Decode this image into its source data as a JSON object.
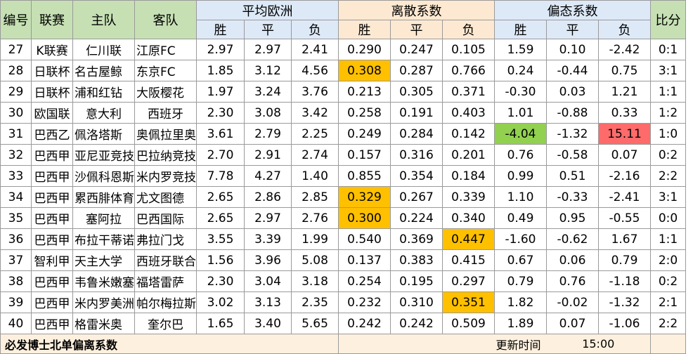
{
  "headers": {
    "id": "编号",
    "league": "联赛",
    "home": "主队",
    "away": "客队",
    "avg_euro": "平均欧洲",
    "dispersion": "离散系数",
    "skew": "偏态系数",
    "score": "比分",
    "win": "胜",
    "draw": "平",
    "loss": "负"
  },
  "rows": [
    {
      "id": "27",
      "league": "K联赛",
      "home": "仁川联",
      "away": "江原FC",
      "e_w": "2.97",
      "e_d": "2.97",
      "e_l": "2.41",
      "d_w": "0.290",
      "d_d": "0.247",
      "d_l": "0.105",
      "s_w": "1.59",
      "s_d": "0.10",
      "s_l": "-2.42",
      "score": "0:1"
    },
    {
      "id": "28",
      "league": "日联杯",
      "home": "名古屋鲸",
      "away": "东京FC",
      "e_w": "1.85",
      "e_d": "3.12",
      "e_l": "4.56",
      "d_w": "0.308",
      "d_d": "0.287",
      "d_l": "0.766",
      "s_w": "0.24",
      "s_d": "-0.44",
      "s_l": "0.75",
      "score": "3:1"
    },
    {
      "id": "29",
      "league": "日联杯",
      "home": "浦和红钻",
      "away": "大阪樱花",
      "e_w": "1.97",
      "e_d": "3.24",
      "e_l": "3.76",
      "d_w": "0.213",
      "d_d": "0.305",
      "d_l": "0.371",
      "s_w": "-0.30",
      "s_d": "0.03",
      "s_l": "1.21",
      "score": "1:1"
    },
    {
      "id": "30",
      "league": "欧国联",
      "home": "意大利",
      "away": "西班牙",
      "e_w": "2.30",
      "e_d": "3.08",
      "e_l": "3.42",
      "d_w": "0.258",
      "d_d": "0.191",
      "d_l": "0.403",
      "s_w": "1.01",
      "s_d": "-0.88",
      "s_l": "0.33",
      "score": "1:2"
    },
    {
      "id": "31",
      "league": "巴西乙",
      "home": "佩洛塔斯",
      "away": "奥佩拉里奥",
      "e_w": "3.61",
      "e_d": "2.79",
      "e_l": "2.25",
      "d_w": "0.249",
      "d_d": "0.284",
      "d_l": "0.142",
      "s_w": "-4.04",
      "s_d": "-1.32",
      "s_l": "15.11",
      "score": "1:0"
    },
    {
      "id": "32",
      "league": "巴西甲",
      "home": "亚尼亚竞技",
      "away": "巴拉纳竞技",
      "e_w": "2.70",
      "e_d": "2.91",
      "e_l": "2.74",
      "d_w": "0.157",
      "d_d": "0.316",
      "d_l": "0.201",
      "s_w": "0.76",
      "s_d": "-0.58",
      "s_l": "0.07",
      "score": "0:2"
    },
    {
      "id": "33",
      "league": "巴西甲",
      "home": "沙佩科恩斯",
      "away": "米内罗竞技",
      "e_w": "7.78",
      "e_d": "4.27",
      "e_l": "1.40",
      "d_w": "0.855",
      "d_d": "0.354",
      "d_l": "0.184",
      "s_w": "0.99",
      "s_d": "0.51",
      "s_l": "-2.16",
      "score": "2:2"
    },
    {
      "id": "34",
      "league": "巴西甲",
      "home": "累西腓体育",
      "away": "尤文图德",
      "e_w": "2.65",
      "e_d": "2.86",
      "e_l": "2.85",
      "d_w": "0.329",
      "d_d": "0.267",
      "d_l": "0.339",
      "s_w": "1.10",
      "s_d": "-0.33",
      "s_l": "-2.41",
      "score": "3:1"
    },
    {
      "id": "35",
      "league": "巴西甲",
      "home": "塞阿拉",
      "away": "巴西国际",
      "e_w": "2.65",
      "e_d": "2.97",
      "e_l": "2.76",
      "d_w": "0.300",
      "d_d": "0.224",
      "d_l": "0.340",
      "s_w": "0.49",
      "s_d": "0.95",
      "s_l": "-0.55",
      "score": "0:0"
    },
    {
      "id": "36",
      "league": "巴西甲",
      "home": "布拉干蒂诺",
      "away": "弗拉门戈",
      "e_w": "3.55",
      "e_d": "3.39",
      "e_l": "1.99",
      "d_w": "0.540",
      "d_d": "0.369",
      "d_l": "0.447",
      "s_w": "-1.60",
      "s_d": "-0.62",
      "s_l": "1.67",
      "score": "1:1"
    },
    {
      "id": "37",
      "league": "智利甲",
      "home": "天主大学",
      "away": "西班牙联合",
      "e_w": "1.56",
      "e_d": "3.96",
      "e_l": "5.08",
      "d_w": "0.137",
      "d_d": "0.383",
      "d_l": "0.415",
      "s_w": "0.67",
      "s_d": "0.06",
      "s_l": "0.79",
      "score": "2:0"
    },
    {
      "id": "38",
      "league": "巴西甲",
      "home": "韦鲁米嫩塞",
      "away": "福塔雷萨",
      "e_w": "2.30",
      "e_d": "3.04",
      "e_l": "3.18",
      "d_w": "0.254",
      "d_d": "0.195",
      "d_l": "0.297",
      "s_w": "0.79",
      "s_d": "0.76",
      "s_l": "-1.18",
      "score": "0:2"
    },
    {
      "id": "39",
      "league": "巴西甲",
      "home": "米内罗美洲",
      "away": "帕尔梅拉斯",
      "e_w": "3.02",
      "e_d": "3.13",
      "e_l": "2.35",
      "d_w": "0.232",
      "d_d": "0.310",
      "d_l": "0.351",
      "s_w": "1.82",
      "s_d": "-0.02",
      "s_l": "-1.32",
      "score": "2:1"
    },
    {
      "id": "40",
      "league": "巴西甲",
      "home": "格雷米奥",
      "away": "奎尔巴",
      "e_w": "1.65",
      "e_d": "3.40",
      "e_l": "5.65",
      "d_w": "0.242",
      "d_d": "0.242",
      "d_l": "0.509",
      "s_w": "1.89",
      "s_d": "0.07",
      "s_l": "-1.06",
      "score": "2:2"
    }
  ],
  "footer": {
    "title": "必发博士北单偏离系数",
    "update_label": "更新时间",
    "update_time": "15:00"
  },
  "colors": {
    "highlight_orange": "#ffc000",
    "highlight_green": "#92d050",
    "highlight_red": "#ff6b6b",
    "header_green": "#c6e0b4",
    "header_blue": "#dde9f7",
    "header_peach": "#fde9d2"
  }
}
